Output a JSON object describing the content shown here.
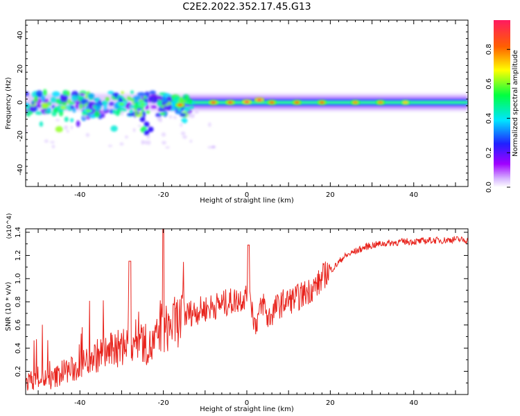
{
  "title": "C2E2.2022.352.17.45.G13",
  "chart_data": [
    {
      "type": "heatmap",
      "xlabel": "Height of straight line (km)",
      "ylabel": "Frequency (Hz)",
      "xlim": [
        -53,
        53
      ],
      "ylim": [
        -50,
        49
      ],
      "xticks": [
        -40,
        -20,
        0,
        20,
        40
      ],
      "yticks": [
        -40,
        -20,
        0,
        20,
        40
      ],
      "colorbar": {
        "label": "Normalized spectral amplitude",
        "ticks": [
          0.0,
          0.2,
          0.4,
          0.6,
          0.8
        ],
        "range": [
          0,
          0.97
        ],
        "colormap": [
          "#ffffff",
          "#a000ff",
          "#2020ff",
          "#00e5ff",
          "#00ff40",
          "#ffff00",
          "#ff6000",
          "#ff1a60"
        ]
      },
      "band": {
        "x_range": [
          -53,
          53
        ],
        "center_hz": 0,
        "note": "narrow spectral band around 0 Hz with scattered energy below 0 Hz for heights < -15 km"
      },
      "hot_spots": [
        {
          "x": 0,
          "y": 0.3,
          "v": 0.95
        },
        {
          "x": 3,
          "y": 1.5,
          "v": 0.95
        },
        {
          "x": -16,
          "y": -1.5,
          "v": 0.9
        },
        {
          "x": -8,
          "y": 0,
          "v": 0.9
        },
        {
          "x": -4,
          "y": 0,
          "v": 0.9
        },
        {
          "x": 6,
          "y": 0,
          "v": 0.85
        },
        {
          "x": 12,
          "y": 0,
          "v": 0.85
        },
        {
          "x": 18,
          "y": 0,
          "v": 0.85
        },
        {
          "x": 26,
          "y": 0,
          "v": 0.8
        },
        {
          "x": 32,
          "y": 0,
          "v": 0.8
        },
        {
          "x": 38,
          "y": 0,
          "v": 0.75
        },
        {
          "x": -44,
          "y": -3,
          "v": 0.65
        },
        {
          "x": -38,
          "y": -5,
          "v": 0.6
        },
        {
          "x": -30,
          "y": -1,
          "v": 0.6
        },
        {
          "x": -25,
          "y": -1,
          "v": 0.6
        }
      ]
    },
    {
      "type": "line",
      "xlabel": "Height of straight line (km)",
      "ylabel": "SNR (10 * v/v)",
      "y_multiplier": "(x10^4)",
      "xlim": [
        -53,
        53
      ],
      "ylim": [
        0,
        1.43
      ],
      "xticks": [
        -40,
        -20,
        0,
        20,
        40
      ],
      "yticks": [
        0.2,
        0.4,
        0.6,
        0.8,
        1.0,
        1.2,
        1.4
      ],
      "series": [
        {
          "color": "#e8231c",
          "x": [
            -53,
            -50,
            -47,
            -44,
            -41,
            -38,
            -35,
            -32,
            -29,
            -28,
            -26,
            -23,
            -21,
            -20,
            -18,
            -16,
            -14,
            -12,
            -10,
            -8,
            -6,
            -4,
            -2,
            0,
            0.3,
            1,
            2,
            3,
            4,
            5,
            7,
            9,
            11,
            13,
            15,
            17,
            19,
            21,
            23,
            25,
            27,
            29,
            32,
            35,
            38,
            41,
            44,
            47,
            50,
            53
          ],
          "values": [
            0.1,
            0.15,
            0.12,
            0.2,
            0.22,
            0.3,
            0.35,
            0.38,
            0.42,
            0.45,
            0.48,
            0.4,
            0.52,
            0.55,
            0.6,
            0.65,
            0.7,
            0.72,
            0.74,
            0.76,
            0.78,
            0.8,
            0.82,
            0.85,
            1.2,
            0.8,
            0.6,
            0.7,
            0.8,
            0.65,
            0.75,
            0.8,
            0.82,
            0.85,
            0.9,
            0.95,
            1.05,
            1.1,
            1.18,
            1.22,
            1.25,
            1.28,
            1.3,
            1.31,
            1.32,
            1.32,
            1.33,
            1.33,
            1.34,
            1.33
          ]
        }
      ]
    }
  ]
}
